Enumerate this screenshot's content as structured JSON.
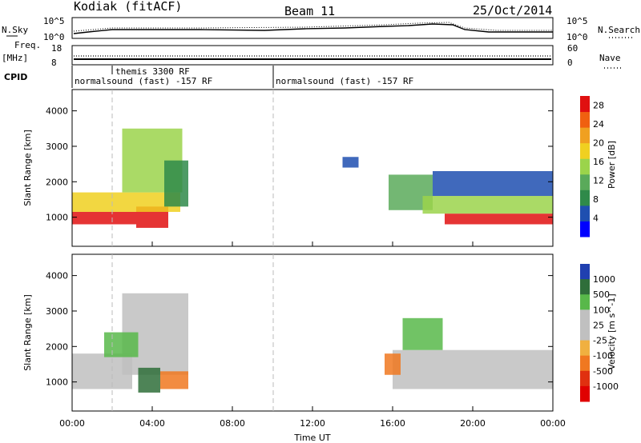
{
  "header": {
    "station": "Kodiak (fitACF)",
    "beam": "Beam 11",
    "date": "25/Oct/2014"
  },
  "left_labels": {
    "nsky": "N.Sky",
    "freq": "Freq.",
    "freq_unit": "[MHz]",
    "cpid": "CPID"
  },
  "right_labels": {
    "nsearch": "N.Search",
    "nave": "Nave"
  },
  "noise_panel": {
    "left_ticks": [
      "10^5",
      "10^0"
    ],
    "right_ticks": [
      "10^5",
      "10^0"
    ]
  },
  "freq_panel": {
    "left_ticks": [
      "18",
      "8"
    ],
    "right_ticks": [
      "60",
      "0"
    ]
  },
  "cpid_panel": {
    "segments": [
      {
        "label": "normalsound (fast) -157 RF",
        "start_hour": 0,
        "end_hour": 10
      },
      {
        "label": "themis 3300 RF",
        "start_hour": 2,
        "end_hour": 2
      },
      {
        "label": "normalsound (fast) -157 RF",
        "start_hour": 10,
        "end_hour": 24
      }
    ]
  },
  "colors": {
    "power_scale": [
      "#0000ff",
      "#1f4fb0",
      "#2f8a4a",
      "#5aaa5a",
      "#9bd44b",
      "#f0d020",
      "#f0a020",
      "#f06010",
      "#e01010"
    ],
    "velocity_scale": [
      "#2040b0",
      "#2f6e3a",
      "#58b84a",
      "#c0c0c0",
      "#c0c0c0",
      "#f0b040",
      "#f07820",
      "#e03010",
      "#e00000"
    ]
  },
  "chart_data": [
    {
      "type": "heatmap",
      "name": "power",
      "ylabel": "Slant Range [km]",
      "xlabel": "Time UT",
      "xlim": [
        0,
        24
      ],
      "ylim": [
        180,
        4600
      ],
      "x_ticks": [
        "00:00",
        "04:00",
        "08:00",
        "12:00",
        "16:00",
        "20:00",
        "00:00"
      ],
      "y_ticks": [
        1000,
        2000,
        3000,
        4000
      ],
      "colorbar": {
        "label": "Power [dB]",
        "ticks": [
          4,
          8,
          12,
          16,
          20,
          24,
          28
        ],
        "range": [
          0,
          30
        ]
      },
      "regions": [
        {
          "t0": 0.0,
          "t1": 3.2,
          "r0": 800,
          "r1": 1150,
          "level": 28
        },
        {
          "t0": 3.2,
          "t1": 4.8,
          "r0": 700,
          "r1": 1300,
          "level": 27
        },
        {
          "t0": 0.0,
          "t1": 5.4,
          "r0": 1150,
          "r1": 1700,
          "level": 18
        },
        {
          "t0": 2.5,
          "t1": 5.5,
          "r0": 1700,
          "r1": 3500,
          "level": 14
        },
        {
          "t0": 4.6,
          "t1": 5.8,
          "r0": 1300,
          "r1": 2600,
          "level": 8
        },
        {
          "t0": 15.8,
          "t1": 18.0,
          "r0": 1200,
          "r1": 2200,
          "level": 10
        },
        {
          "t0": 17.5,
          "t1": 24.0,
          "r0": 1100,
          "r1": 1600,
          "level": 16
        },
        {
          "t0": 18.6,
          "t1": 24.0,
          "r0": 800,
          "r1": 1100,
          "level": 27
        },
        {
          "t0": 18.0,
          "t1": 24.0,
          "r0": 1600,
          "r1": 2300,
          "level": 5
        },
        {
          "t0": 13.5,
          "t1": 14.3,
          "r0": 2400,
          "r1": 2700,
          "level": 4
        }
      ]
    },
    {
      "type": "heatmap",
      "name": "velocity",
      "ylabel": "Slant Range [km]",
      "xlabel": "Time UT",
      "xlim": [
        0,
        24
      ],
      "ylim": [
        180,
        4600
      ],
      "x_ticks": [
        "00:00",
        "04:00",
        "08:00",
        "12:00",
        "16:00",
        "20:00",
        "00:00"
      ],
      "y_ticks": [
        1000,
        2000,
        3000,
        4000
      ],
      "colorbar": {
        "label": "Velocity [m s^-1]",
        "ticks": [
          "1000",
          "500",
          "100",
          "25",
          "-25",
          "-100",
          "-500",
          "-1000"
        ]
      },
      "regions": [
        {
          "t0": 0.0,
          "t1": 3.0,
          "r0": 800,
          "r1": 1800,
          "level": 0
        },
        {
          "t0": 2.5,
          "t1": 5.8,
          "r0": 1200,
          "r1": 3500,
          "level": 0
        },
        {
          "t0": 3.3,
          "t1": 4.4,
          "r0": 700,
          "r1": 1400,
          "level": 600
        },
        {
          "t0": 4.4,
          "t1": 5.8,
          "r0": 800,
          "r1": 1300,
          "level": -150
        },
        {
          "t0": 1.6,
          "t1": 3.3,
          "r0": 1700,
          "r1": 2400,
          "level": 120
        },
        {
          "t0": 16.0,
          "t1": 24.0,
          "r0": 800,
          "r1": 1900,
          "level": 0
        },
        {
          "t0": 15.6,
          "t1": 16.4,
          "r0": 1200,
          "r1": 1800,
          "level": -300
        },
        {
          "t0": 16.5,
          "t1": 18.5,
          "r0": 1900,
          "r1": 2800,
          "level": 120
        }
      ]
    }
  ]
}
